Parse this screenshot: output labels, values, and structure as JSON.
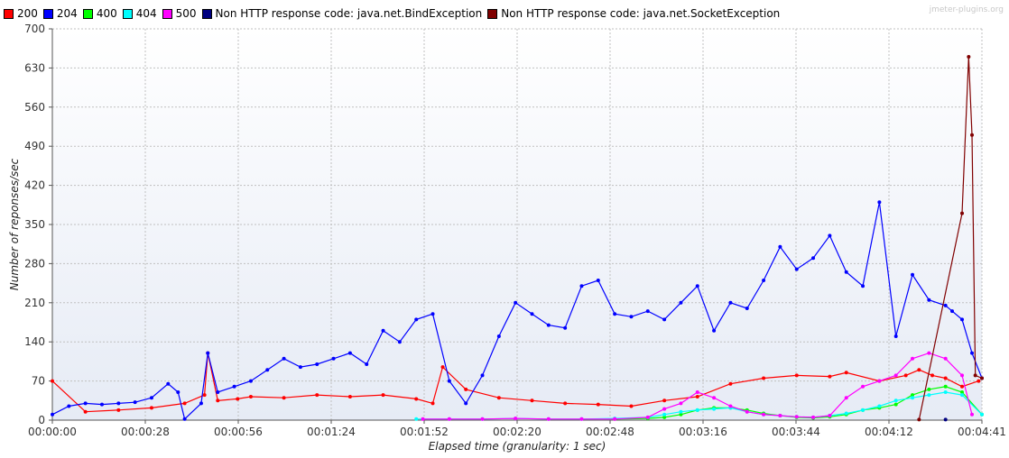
{
  "watermark": "jmeter-plugins.org",
  "chart_data": {
    "type": "line",
    "title": "",
    "xlabel": "Elapsed time (granularity: 1 sec)",
    "ylabel": "Number of reponses/sec",
    "x_range_sec": [
      0,
      281
    ],
    "ylim": [
      0,
      700
    ],
    "y_ticks": [
      0,
      70,
      140,
      210,
      280,
      350,
      420,
      490,
      560,
      630,
      700
    ],
    "x_tick_labels": [
      "00:00:00",
      "00:00:28",
      "00:00:56",
      "00:01:24",
      "00:01:52",
      "00:02:20",
      "00:02:48",
      "00:03:16",
      "00:03:44",
      "00:04:12",
      "00:04:41"
    ],
    "grid": true,
    "legend_position": "top",
    "series": [
      {
        "name": "200",
        "color": "#ff0000",
        "x": [
          0,
          10,
          20,
          30,
          40,
          46,
          47,
          50,
          56,
          60,
          70,
          80,
          90,
          100,
          110,
          115,
          118,
          125,
          135,
          145,
          155,
          165,
          175,
          185,
          195,
          205,
          215,
          225,
          235,
          240,
          250,
          258,
          262,
          266,
          270,
          275,
          280
        ],
        "y": [
          70,
          15,
          18,
          22,
          30,
          45,
          120,
          35,
          38,
          42,
          40,
          45,
          42,
          45,
          38,
          30,
          95,
          55,
          40,
          35,
          30,
          28,
          25,
          35,
          42,
          65,
          75,
          80,
          78,
          85,
          70,
          80,
          90,
          80,
          75,
          60,
          70
        ]
      },
      {
        "name": "204",
        "color": "#0000ff",
        "x": [
          0,
          5,
          10,
          15,
          20,
          25,
          30,
          35,
          38,
          40,
          45,
          47,
          50,
          55,
          60,
          65,
          70,
          75,
          80,
          85,
          90,
          95,
          100,
          105,
          110,
          115,
          120,
          125,
          130,
          135,
          140,
          145,
          150,
          155,
          160,
          165,
          170,
          175,
          180,
          185,
          190,
          195,
          200,
          205,
          210,
          215,
          220,
          225,
          230,
          235,
          240,
          245,
          250,
          255,
          260,
          265,
          270,
          272,
          275,
          278,
          281
        ],
        "y": [
          10,
          25,
          30,
          28,
          30,
          32,
          40,
          65,
          50,
          2,
          30,
          120,
          50,
          60,
          70,
          90,
          110,
          95,
          100,
          110,
          120,
          100,
          160,
          140,
          180,
          190,
          70,
          30,
          80,
          150,
          210,
          190,
          170,
          165,
          240,
          250,
          190,
          185,
          195,
          180,
          210,
          240,
          160,
          210,
          200,
          250,
          310,
          270,
          290,
          330,
          265,
          240,
          390,
          150,
          260,
          215,
          205,
          195,
          180,
          120,
          75
        ]
      },
      {
        "name": "400",
        "color": "#00ff00",
        "x": [
          170,
          180,
          185,
          190,
          195,
          200,
          205,
          210,
          215,
          220,
          225,
          230,
          235,
          240,
          245,
          250,
          255,
          260,
          265,
          270,
          275,
          281
        ],
        "y": [
          2,
          3,
          5,
          10,
          18,
          22,
          22,
          18,
          12,
          8,
          5,
          4,
          6,
          10,
          18,
          22,
          28,
          45,
          55,
          60,
          50,
          10
        ]
      },
      {
        "name": "404",
        "color": "#00ffff",
        "x": [
          110,
          120,
          130,
          140,
          150,
          160,
          170,
          180,
          185,
          190,
          195,
          200,
          205,
          210,
          215,
          220,
          225,
          230,
          235,
          240,
          245,
          250,
          255,
          260,
          265,
          270,
          275,
          281
        ],
        "y": [
          2,
          2,
          2,
          3,
          2,
          2,
          3,
          5,
          10,
          15,
          18,
          20,
          22,
          15,
          10,
          8,
          6,
          5,
          8,
          12,
          18,
          25,
          35,
          40,
          45,
          50,
          45,
          10
        ]
      },
      {
        "name": "500",
        "color": "#ff00ff",
        "x": [
          112,
          120,
          130,
          140,
          150,
          160,
          170,
          180,
          185,
          190,
          195,
          200,
          205,
          210,
          215,
          220,
          225,
          230,
          235,
          240,
          245,
          250,
          255,
          260,
          265,
          270,
          275,
          278
        ],
        "y": [
          2,
          2,
          2,
          3,
          2,
          2,
          2,
          5,
          20,
          30,
          50,
          40,
          25,
          15,
          10,
          8,
          6,
          5,
          8,
          40,
          60,
          70,
          80,
          110,
          120,
          110,
          80,
          10
        ]
      },
      {
        "name": "Non HTTP response code: java.net.BindException",
        "color": "#000080",
        "x": [
          270
        ],
        "y": [
          1
        ]
      },
      {
        "name": "Non HTTP response code: java.net.SocketException",
        "color": "#800000",
        "x": [
          262,
          275,
          277,
          278,
          279,
          281
        ],
        "y": [
          1,
          370,
          650,
          510,
          80,
          75
        ]
      }
    ]
  }
}
